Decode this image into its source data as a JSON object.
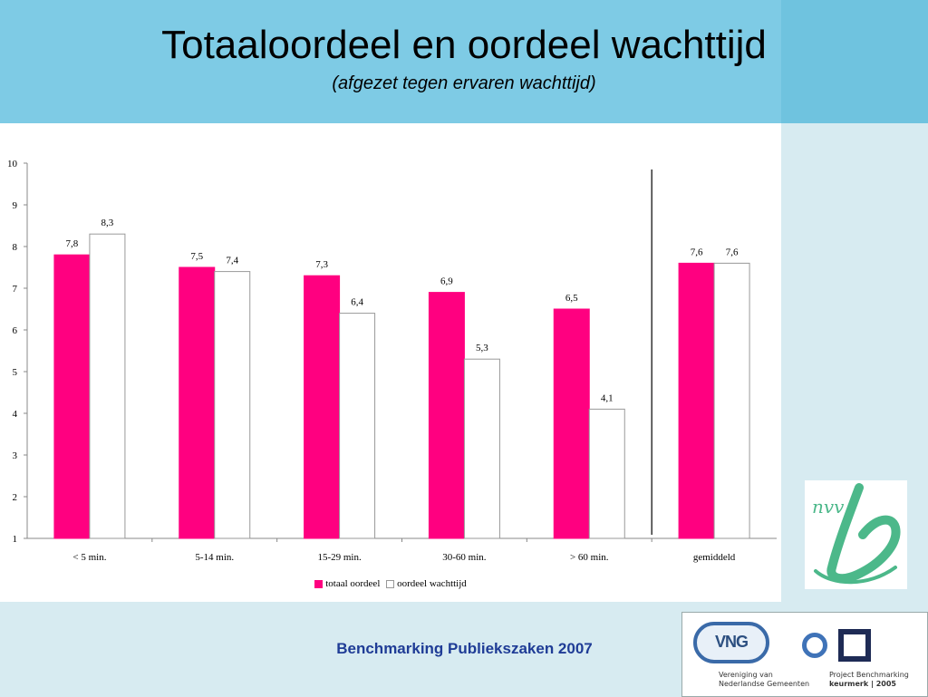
{
  "slide": {
    "title": "Totaaloordeel en oordeel wachttijd",
    "subtitle": "(afgezet tegen ervaren  wachttijd)",
    "footer": "Benchmarking Publiekszaken 2007"
  },
  "logos": {
    "nvvb_text": "nvv",
    "vng_badge": "VNG",
    "vng_caption_line1": "Vereniging van",
    "vng_caption_line2": "Nederlandse Gemeenten",
    "pb_caption_line1": "Project Benchmarking",
    "pb_caption_line2": "keurmerk | 2005"
  },
  "colors": {
    "header": "#7ecbe5",
    "series_totaal": "#ff0080",
    "series_wachttijd": "#ffffff",
    "footer_text": "#1f3c96"
  },
  "chart_data": {
    "type": "bar",
    "categories": [
      "< 5 min.",
      "5-14 min.",
      "15-29 min.",
      "30-60 min.",
      "> 60 min.",
      "gemiddeld"
    ],
    "series": [
      {
        "name": "totaal oordeel",
        "values": [
          7.8,
          7.5,
          7.3,
          6.9,
          6.5,
          7.6
        ],
        "labels": [
          "7,8",
          "7,5",
          "7,3",
          "6,9",
          "6,5",
          "7,6"
        ]
      },
      {
        "name": "oordeel wachttijd",
        "values": [
          8.3,
          7.4,
          6.4,
          5.3,
          4.1,
          7.6
        ],
        "labels": [
          "8,3",
          "7,4",
          "6,4",
          "5,3",
          "4,1",
          "7,6"
        ]
      }
    ],
    "ylim": [
      1,
      10
    ],
    "yticks": [
      1,
      2,
      3,
      4,
      5,
      6,
      7,
      8,
      9,
      10
    ],
    "legend_position": "bottom-center",
    "separator_before_category": "gemiddeld",
    "grid": false
  }
}
